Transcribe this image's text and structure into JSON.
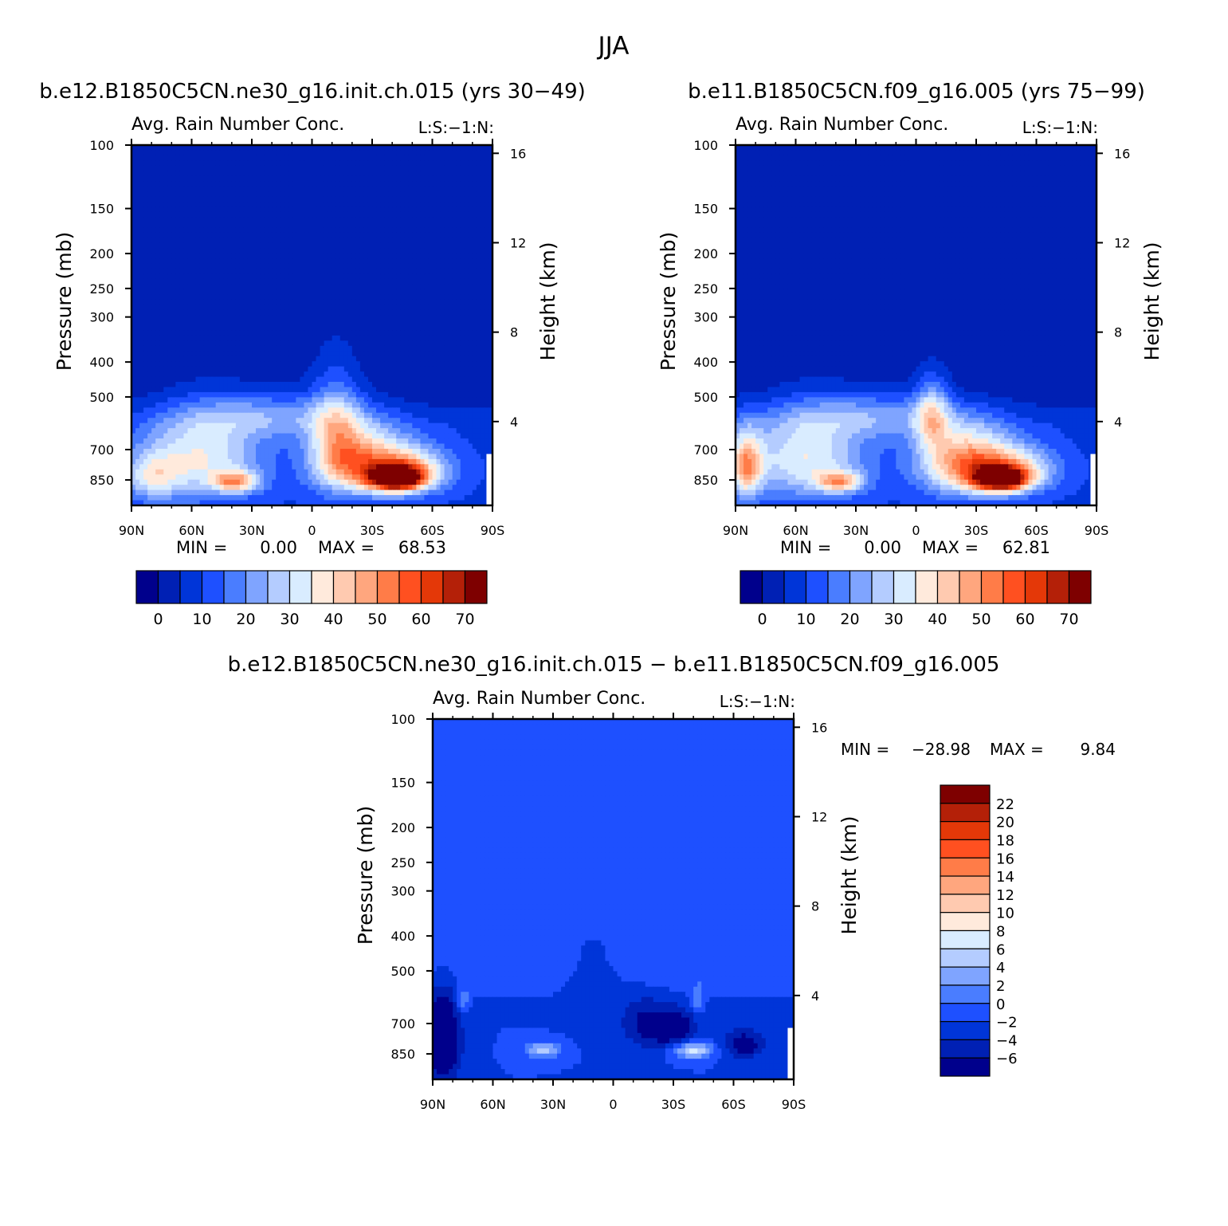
{
  "page": {
    "title": "JJA",
    "panel_subtitle": "Avg. Rain Number Conc.",
    "panel_tag": "L:S:−1:N:",
    "y_left_label": "Pressure (mb)",
    "y_right_label": "Height (km)",
    "min_label": "MIN =",
    "max_label": "MAX ="
  },
  "colors": {
    "abs_levels": [
      "#00008c",
      "#0020b4",
      "#0035d8",
      "#1e50ff",
      "#4a7dff",
      "#7fa4ff",
      "#b4ccff",
      "#d9ecff",
      "#ffeadc",
      "#ffcab0",
      "#ffa67e",
      "#ff7c48",
      "#ff5020",
      "#e43808",
      "#b42008",
      "#7e0000"
    ],
    "diff_levels": [
      "#00008c",
      "#0020b4",
      "#0035d8",
      "#1e50ff",
      "#4a7dff",
      "#7fa4ff",
      "#b4ccff",
      "#d9ecff",
      "#ffeadc",
      "#ffcab0",
      "#ffa67e",
      "#ff7c48",
      "#ff5020",
      "#e43808",
      "#b42008",
      "#7e0000"
    ]
  },
  "chart_data": [
    {
      "type": "heatmap",
      "title": "b.e12.B1850C5CN.ne30_g16.init.ch.015 (yrs 30−49)",
      "subtitle": "Avg. Rain Number Conc.",
      "tag": "L:S:−1:N:",
      "xlabel": "",
      "ylabel": "Pressure (mb)",
      "y2label": "Height (km)",
      "x_ticks": [
        "90N",
        "60N",
        "30N",
        "0",
        "30S",
        "60S",
        "90S"
      ],
      "y_ticks": [
        100,
        150,
        200,
        250,
        300,
        400,
        500,
        700,
        850
      ],
      "y2_ticks": [
        16,
        12,
        8,
        4
      ],
      "ylim": [
        100,
        1000
      ],
      "y_scale": "log",
      "min": "0.00",
      "max": "68.53",
      "colorbar_ticks": [
        "0",
        "10",
        "20",
        "30",
        "40",
        "50",
        "60",
        "70"
      ],
      "blobs": [
        {
          "lat": 55,
          "p": 740,
          "v": 26,
          "slat": 20,
          "sp": 140
        },
        {
          "lat": 80,
          "p": 830,
          "v": 20,
          "slat": 10,
          "sp": 90
        },
        {
          "lat": 38,
          "p": 860,
          "v": 32,
          "slat": 8,
          "sp": 40
        },
        {
          "lat": 20,
          "p": 560,
          "v": 15,
          "slat": 30,
          "sp": 60
        },
        {
          "lat": -12,
          "p": 620,
          "v": 22,
          "slat": 9,
          "sp": 150
        },
        {
          "lat": -25,
          "p": 760,
          "v": 38,
          "slat": 16,
          "sp": 110
        },
        {
          "lat": -42,
          "p": 840,
          "v": 68,
          "slat": 9,
          "sp": 45
        },
        {
          "lat": -50,
          "p": 800,
          "v": 28,
          "slat": 14,
          "sp": 80
        }
      ]
    },
    {
      "type": "heatmap",
      "title": "b.e11.B1850C5CN.f09_g16.005 (yrs 75−99)",
      "subtitle": "Avg. Rain Number Conc.",
      "tag": "L:S:−1:N:",
      "xlabel": "",
      "ylabel": "Pressure (mb)",
      "y2label": "Height (km)",
      "x_ticks": [
        "90N",
        "60N",
        "30N",
        "0",
        "30S",
        "60S",
        "90S"
      ],
      "y_ticks": [
        100,
        150,
        200,
        250,
        300,
        400,
        500,
        700,
        850
      ],
      "y2_ticks": [
        16,
        12,
        8,
        4
      ],
      "ylim": [
        100,
        1000
      ],
      "y_scale": "log",
      "min": "0.00",
      "max": "62.81",
      "colorbar_ticks": [
        "0",
        "10",
        "20",
        "30",
        "40",
        "50",
        "60",
        "70"
      ],
      "blobs": [
        {
          "lat": 55,
          "p": 740,
          "v": 26,
          "slat": 20,
          "sp": 140
        },
        {
          "lat": 85,
          "p": 780,
          "v": 36,
          "slat": 6,
          "sp": 110
        },
        {
          "lat": 38,
          "p": 860,
          "v": 30,
          "slat": 8,
          "sp": 40
        },
        {
          "lat": 20,
          "p": 560,
          "v": 15,
          "slat": 30,
          "sp": 60
        },
        {
          "lat": -8,
          "p": 560,
          "v": 24,
          "slat": 6,
          "sp": 90
        },
        {
          "lat": -25,
          "p": 760,
          "v": 42,
          "slat": 16,
          "sp": 110
        },
        {
          "lat": -42,
          "p": 845,
          "v": 62,
          "slat": 9,
          "sp": 45
        },
        {
          "lat": -50,
          "p": 800,
          "v": 26,
          "slat": 14,
          "sp": 80
        }
      ]
    },
    {
      "type": "heatmap",
      "title": "b.e12.B1850C5CN.ne30_g16.init.ch.015 − b.e11.B1850C5CN.f09_g16.005",
      "subtitle": "Avg. Rain Number Conc.",
      "tag": "L:S:−1:N:",
      "xlabel": "",
      "ylabel": "Pressure (mb)",
      "y2label": "Height (km)",
      "x_ticks": [
        "90N",
        "60N",
        "30N",
        "0",
        "30S",
        "60S",
        "90S"
      ],
      "y_ticks": [
        100,
        150,
        200,
        250,
        300,
        400,
        500,
        700,
        850
      ],
      "y2_ticks": [
        16,
        12,
        8,
        4
      ],
      "ylim": [
        100,
        1000
      ],
      "y_scale": "log",
      "min": "−28.98",
      "max": "9.84",
      "colorbar_ticks": [
        "22",
        "20",
        "18",
        "16",
        "14",
        "12",
        "10",
        "8",
        "6",
        "4",
        "2",
        "0",
        "−2",
        "−4",
        "−6"
      ],
      "blobs": [
        {
          "lat": 85,
          "p": 780,
          "v": -9,
          "slat": 6,
          "sp": 150
        },
        {
          "lat": 75,
          "p": 600,
          "v": 5,
          "slat": 2,
          "sp": 30
        },
        {
          "lat": 35,
          "p": 830,
          "v": 7,
          "slat": 6,
          "sp": 30
        },
        {
          "lat": 10,
          "p": 500,
          "v": -2,
          "slat": 10,
          "sp": 120
        },
        {
          "lat": -15,
          "p": 700,
          "v": -4,
          "slat": 8,
          "sp": 80
        },
        {
          "lat": -40,
          "p": 830,
          "v": 9,
          "slat": 7,
          "sp": 30
        },
        {
          "lat": -30,
          "p": 720,
          "v": -7,
          "slat": 8,
          "sp": 60
        },
        {
          "lat": -65,
          "p": 800,
          "v": -6,
          "slat": 7,
          "sp": 50
        },
        {
          "lat": -42,
          "p": 600,
          "v": 4,
          "slat": 2,
          "sp": 40
        }
      ]
    }
  ]
}
